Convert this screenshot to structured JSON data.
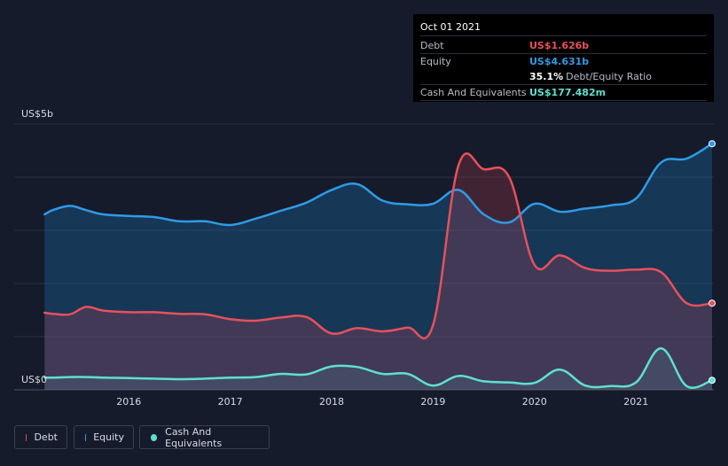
{
  "tooltip": {
    "date": "Oct 01 2021",
    "rows": [
      {
        "label": "Debt",
        "value": "US$1.626b",
        "color": "#e8505b"
      },
      {
        "label": "Equity",
        "value": "US$4.631b",
        "color": "#2e9be5"
      },
      {
        "label": "",
        "value": "35.1%",
        "extra": "Debt/Equity Ratio",
        "color": "#ffffff"
      },
      {
        "label": "Cash And Equivalents",
        "value": "US$177.482m",
        "color": "#5fe0cf"
      }
    ]
  },
  "legend": [
    {
      "label": "Debt",
      "color": "#e8505b"
    },
    {
      "label": "Equity",
      "color": "#2e9be5"
    },
    {
      "label": "Cash And Equivalents",
      "color": "#5fe0cf"
    }
  ],
  "chart_data": {
    "type": "area",
    "y_unit_label_top": "US$5b",
    "y_unit_label_bottom": "US$0",
    "ylim": [
      0,
      5
    ],
    "xlim": [
      2015.15,
      2021.75
    ],
    "x_ticks": [
      2016,
      2017,
      2018,
      2019,
      2020,
      2021
    ],
    "grid": true,
    "series": [
      {
        "name": "Equity",
        "color": "#2e9be5",
        "points": [
          [
            2015.17,
            3.3
          ],
          [
            2015.25,
            3.38
          ],
          [
            2015.42,
            3.46
          ],
          [
            2015.58,
            3.38
          ],
          [
            2015.75,
            3.3
          ],
          [
            2016.0,
            3.27
          ],
          [
            2016.25,
            3.25
          ],
          [
            2016.5,
            3.17
          ],
          [
            2016.75,
            3.17
          ],
          [
            2017.0,
            3.1
          ],
          [
            2017.25,
            3.22
          ],
          [
            2017.5,
            3.37
          ],
          [
            2017.75,
            3.52
          ],
          [
            2018.0,
            3.76
          ],
          [
            2018.25,
            3.87
          ],
          [
            2018.5,
            3.56
          ],
          [
            2018.75,
            3.49
          ],
          [
            2019.0,
            3.5
          ],
          [
            2019.25,
            3.76
          ],
          [
            2019.5,
            3.3
          ],
          [
            2019.75,
            3.15
          ],
          [
            2020.0,
            3.5
          ],
          [
            2020.25,
            3.35
          ],
          [
            2020.5,
            3.41
          ],
          [
            2020.75,
            3.47
          ],
          [
            2021.0,
            3.6
          ],
          [
            2021.25,
            4.28
          ],
          [
            2021.5,
            4.35
          ],
          [
            2021.75,
            4.63
          ]
        ]
      },
      {
        "name": "Debt",
        "color": "#e8505b",
        "points": [
          [
            2015.17,
            1.45
          ],
          [
            2015.25,
            1.43
          ],
          [
            2015.42,
            1.42
          ],
          [
            2015.58,
            1.56
          ],
          [
            2015.75,
            1.49
          ],
          [
            2016.0,
            1.46
          ],
          [
            2016.25,
            1.46
          ],
          [
            2016.5,
            1.43
          ],
          [
            2016.75,
            1.42
          ],
          [
            2017.0,
            1.33
          ],
          [
            2017.25,
            1.3
          ],
          [
            2017.5,
            1.36
          ],
          [
            2017.75,
            1.37
          ],
          [
            2018.0,
            1.06
          ],
          [
            2018.25,
            1.16
          ],
          [
            2018.5,
            1.1
          ],
          [
            2018.75,
            1.17
          ],
          [
            2019.0,
            1.22
          ],
          [
            2019.25,
            4.22
          ],
          [
            2019.5,
            4.15
          ],
          [
            2019.75,
            4.0
          ],
          [
            2020.0,
            2.35
          ],
          [
            2020.25,
            2.53
          ],
          [
            2020.5,
            2.29
          ],
          [
            2020.75,
            2.24
          ],
          [
            2021.0,
            2.26
          ],
          [
            2021.25,
            2.21
          ],
          [
            2021.5,
            1.63
          ],
          [
            2021.75,
            1.63
          ]
        ]
      },
      {
        "name": "Cash And Equivalents",
        "color": "#5fe0cf",
        "points": [
          [
            2015.17,
            0.23
          ],
          [
            2015.25,
            0.23
          ],
          [
            2015.42,
            0.24
          ],
          [
            2015.58,
            0.24
          ],
          [
            2015.75,
            0.23
          ],
          [
            2016.0,
            0.22
          ],
          [
            2016.25,
            0.21
          ],
          [
            2016.5,
            0.2
          ],
          [
            2016.75,
            0.21
          ],
          [
            2017.0,
            0.23
          ],
          [
            2017.25,
            0.24
          ],
          [
            2017.5,
            0.3
          ],
          [
            2017.75,
            0.29
          ],
          [
            2018.0,
            0.44
          ],
          [
            2018.25,
            0.43
          ],
          [
            2018.5,
            0.3
          ],
          [
            2018.75,
            0.3
          ],
          [
            2019.0,
            0.08
          ],
          [
            2019.25,
            0.26
          ],
          [
            2019.5,
            0.16
          ],
          [
            2019.75,
            0.14
          ],
          [
            2020.0,
            0.13
          ],
          [
            2020.25,
            0.38
          ],
          [
            2020.5,
            0.08
          ],
          [
            2020.75,
            0.07
          ],
          [
            2021.0,
            0.14
          ],
          [
            2021.25,
            0.78
          ],
          [
            2021.5,
            0.07
          ],
          [
            2021.75,
            0.18
          ]
        ]
      }
    ]
  }
}
